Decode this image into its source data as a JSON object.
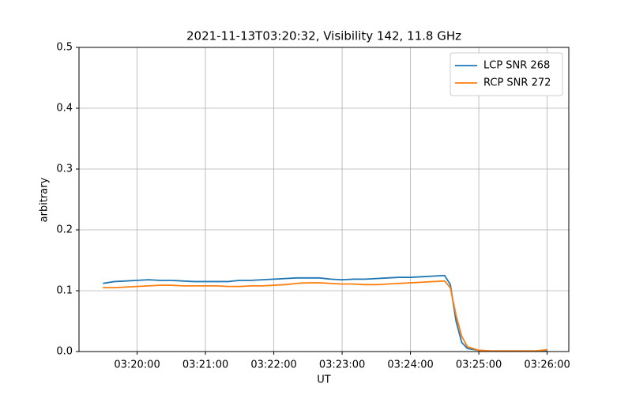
{
  "chart_data": {
    "type": "line",
    "title": "2021-11-13T03:20:32, Visibility 142, 11.8 GHz",
    "xlabel": "UT",
    "ylabel": "arbitrary",
    "x": [
      "03:19:30",
      "03:19:40",
      "03:19:50",
      "03:20:00",
      "03:20:10",
      "03:20:20",
      "03:20:30",
      "03:20:40",
      "03:20:50",
      "03:21:00",
      "03:21:10",
      "03:21:20",
      "03:21:30",
      "03:21:40",
      "03:21:50",
      "03:22:00",
      "03:22:10",
      "03:22:20",
      "03:22:30",
      "03:22:40",
      "03:22:50",
      "03:23:00",
      "03:23:10",
      "03:23:20",
      "03:23:30",
      "03:23:40",
      "03:23:50",
      "03:24:00",
      "03:24:10",
      "03:24:20",
      "03:24:30",
      "03:24:35",
      "03:24:40",
      "03:24:45",
      "03:24:50",
      "03:25:00",
      "03:25:10",
      "03:25:20",
      "03:25:30",
      "03:25:40",
      "03:25:50",
      "03:26:00"
    ],
    "series": [
      {
        "name": "LCP SNR 268",
        "color": "#1f77b4",
        "values": [
          0.112,
          0.115,
          0.116,
          0.117,
          0.118,
          0.117,
          0.117,
          0.116,
          0.115,
          0.115,
          0.115,
          0.115,
          0.117,
          0.117,
          0.118,
          0.119,
          0.12,
          0.121,
          0.121,
          0.121,
          0.119,
          0.118,
          0.119,
          0.119,
          0.12,
          0.121,
          0.122,
          0.122,
          0.123,
          0.124,
          0.125,
          0.11,
          0.05,
          0.015,
          0.005,
          0.002,
          0.001,
          0.001,
          0.001,
          0.001,
          0.001,
          0.002
        ]
      },
      {
        "name": "RCP SNR 272",
        "color": "#ff7f0e",
        "values": [
          0.105,
          0.105,
          0.106,
          0.107,
          0.108,
          0.109,
          0.109,
          0.108,
          0.108,
          0.108,
          0.108,
          0.107,
          0.107,
          0.108,
          0.108,
          0.109,
          0.11,
          0.112,
          0.113,
          0.113,
          0.112,
          0.111,
          0.111,
          0.11,
          0.11,
          0.111,
          0.112,
          0.113,
          0.114,
          0.115,
          0.116,
          0.105,
          0.06,
          0.025,
          0.008,
          0.002,
          0.001,
          0.001,
          0.001,
          0.001,
          0.001,
          0.003
        ]
      }
    ],
    "xlim": [
      "03:19:09",
      "03:26:19"
    ],
    "xticks": [
      "03:20:00",
      "03:21:00",
      "03:22:00",
      "03:23:00",
      "03:24:00",
      "03:25:00",
      "03:26:00"
    ],
    "ylim": [
      0,
      0.5
    ],
    "yticks": [
      {
        "value": 0,
        "label": "0.0"
      },
      0.1,
      0.2,
      0.3,
      0.4,
      0.5
    ],
    "grid": true,
    "legend": "upper right"
  }
}
